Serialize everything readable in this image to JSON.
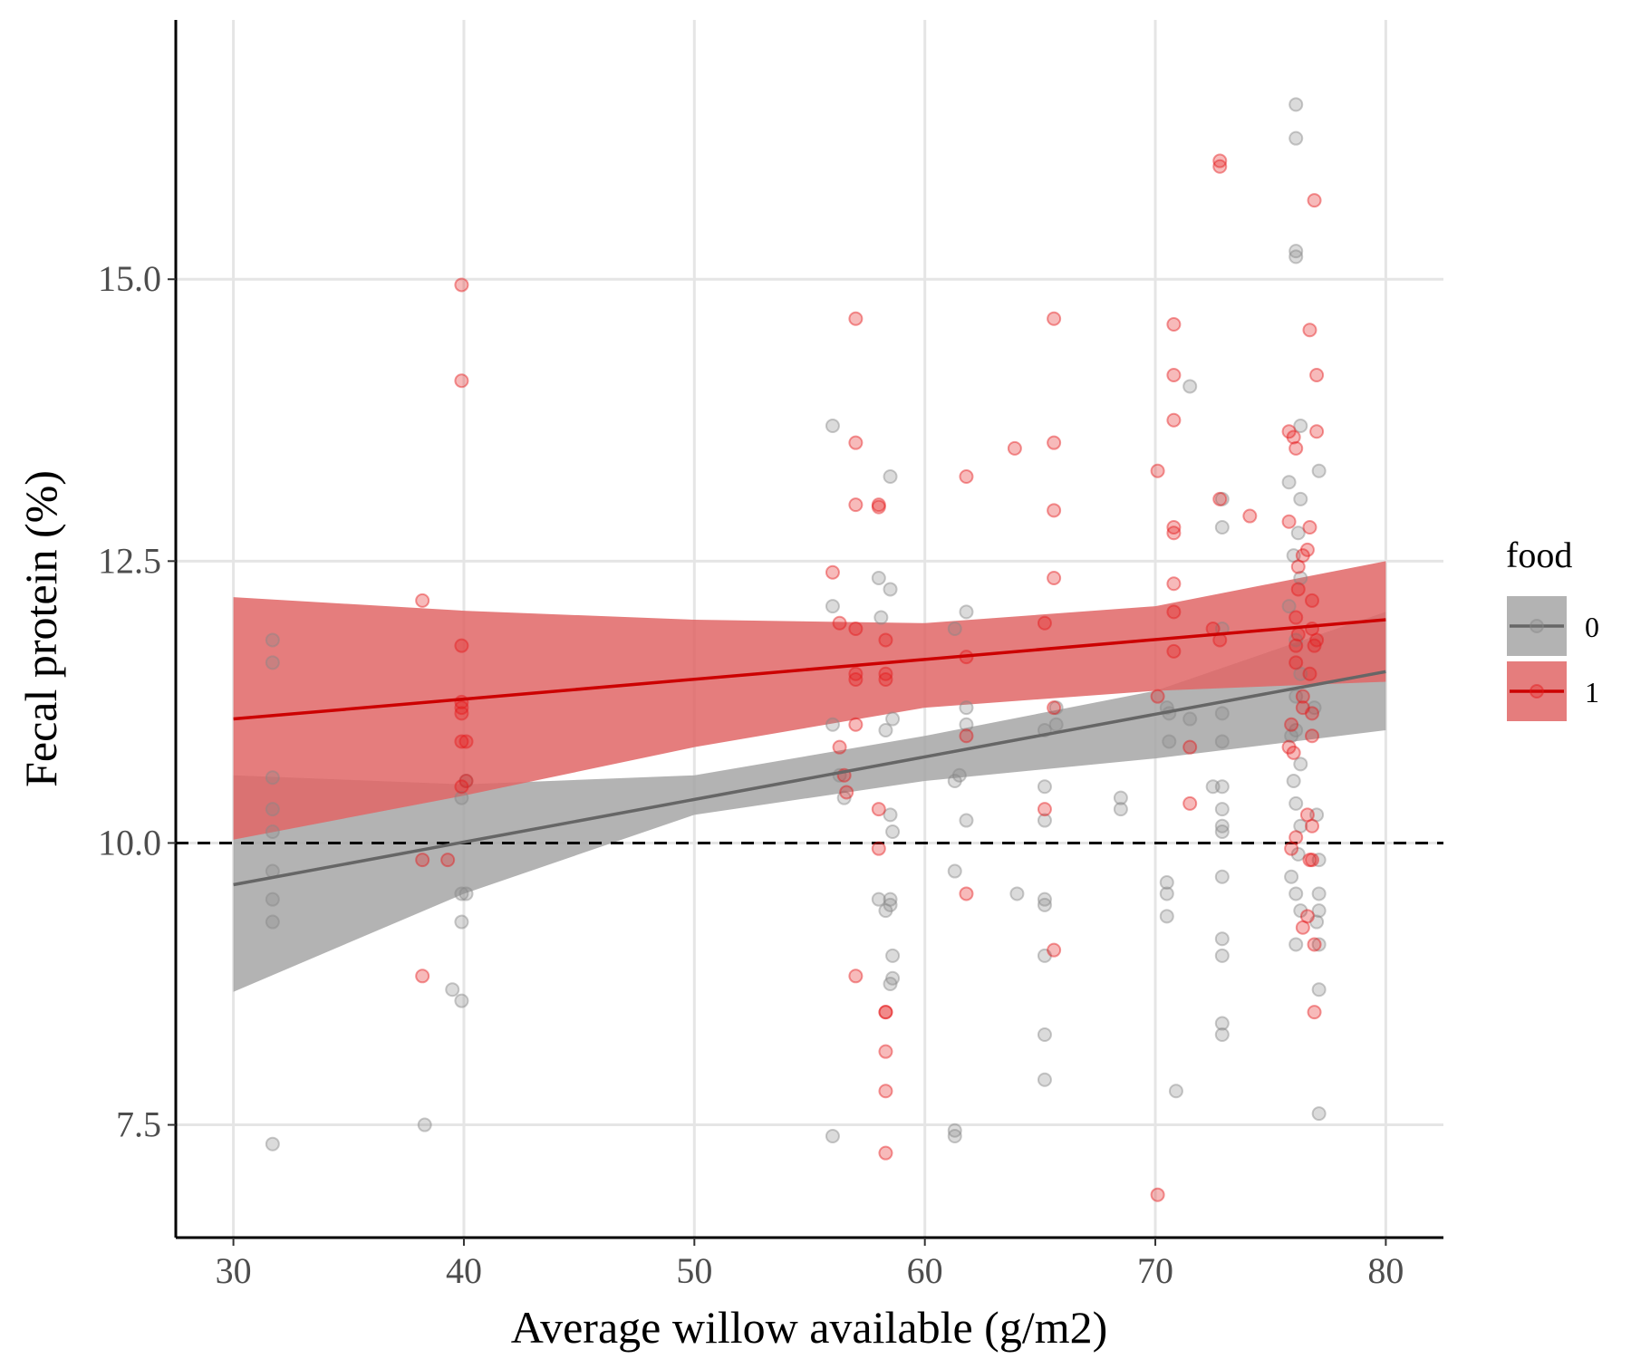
{
  "chart_data": {
    "type": "scatter",
    "xlabel": "Average willow available (g/m2)",
    "ylabel": "Fecal protein (%)",
    "xlim": [
      27.5,
      82.5
    ],
    "ylim": [
      6.5,
      17.3
    ],
    "x_ticks": [
      30,
      40,
      50,
      60,
      70,
      80
    ],
    "y_ticks": [
      7.5,
      10.0,
      12.5,
      15.0
    ],
    "x_tick_labels": [
      "30",
      "40",
      "50",
      "60",
      "70",
      "80"
    ],
    "y_tick_labels": [
      "7.5",
      "10.0",
      "12.5",
      "15.0"
    ],
    "grid": true,
    "reference_line": {
      "y": 10.0,
      "style": "dashed"
    },
    "legend": {
      "title": "food",
      "position": "right"
    },
    "series": [
      {
        "name": "0",
        "color": "#888888",
        "line_color": "#666666",
        "band_color": "#a6a6a6",
        "fit": {
          "x": [
            30,
            80
          ],
          "y": [
            9.63,
            11.52
          ]
        },
        "ci_lower": {
          "x": [
            30,
            40,
            50,
            60,
            70,
            80
          ],
          "y": [
            8.68,
            9.55,
            10.25,
            10.55,
            10.75,
            11.0
          ]
        },
        "ci_upper": {
          "x": [
            30,
            40,
            50,
            60,
            70,
            80
          ],
          "y": [
            10.6,
            10.52,
            10.6,
            10.95,
            11.35,
            12.05
          ]
        },
        "points": [
          [
            31.7,
            7.33
          ],
          [
            31.7,
            9.3
          ],
          [
            31.7,
            9.5
          ],
          [
            31.7,
            9.75
          ],
          [
            31.7,
            10.1
          ],
          [
            31.7,
            10.3
          ],
          [
            31.7,
            10.58
          ],
          [
            31.7,
            11.8
          ],
          [
            31.7,
            11.6
          ],
          [
            38.3,
            7.5
          ],
          [
            39.5,
            8.7
          ],
          [
            39.9,
            8.6
          ],
          [
            39.9,
            9.3
          ],
          [
            39.9,
            9.55
          ],
          [
            40.1,
            9.55
          ],
          [
            39.9,
            10.4
          ],
          [
            40.1,
            10.55
          ],
          [
            56.0,
            13.7
          ],
          [
            56.0,
            12.1
          ],
          [
            56.0,
            11.05
          ],
          [
            56.3,
            10.6
          ],
          [
            56.5,
            10.4
          ],
          [
            56.0,
            7.4
          ],
          [
            58.0,
            12.35
          ],
          [
            58.1,
            12.0
          ],
          [
            58.5,
            12.25
          ],
          [
            58.5,
            13.25
          ],
          [
            58.6,
            11.1
          ],
          [
            58.3,
            11.0
          ],
          [
            58.5,
            10.25
          ],
          [
            58.6,
            10.1
          ],
          [
            58.0,
            9.5
          ],
          [
            58.3,
            9.4
          ],
          [
            58.5,
            9.45
          ],
          [
            58.5,
            9.5
          ],
          [
            58.6,
            9.0
          ],
          [
            58.5,
            8.75
          ],
          [
            58.6,
            8.8
          ],
          [
            61.3,
            11.9
          ],
          [
            61.8,
            12.05
          ],
          [
            61.8,
            11.2
          ],
          [
            61.8,
            11.05
          ],
          [
            61.5,
            10.6
          ],
          [
            61.3,
            10.55
          ],
          [
            61.8,
            10.2
          ],
          [
            61.3,
            9.75
          ],
          [
            61.3,
            7.45
          ],
          [
            61.3,
            7.4
          ],
          [
            64.0,
            9.55
          ],
          [
            65.2,
            11.0
          ],
          [
            65.2,
            10.5
          ],
          [
            65.2,
            10.2
          ],
          [
            65.2,
            9.5
          ],
          [
            65.2,
            9.45
          ],
          [
            65.2,
            9.0
          ],
          [
            65.2,
            8.3
          ],
          [
            65.2,
            7.9
          ],
          [
            65.7,
            11.2
          ],
          [
            65.7,
            11.05
          ],
          [
            68.5,
            10.4
          ],
          [
            68.5,
            10.3
          ],
          [
            70.5,
            11.2
          ],
          [
            70.6,
            11.15
          ],
          [
            70.6,
            10.9
          ],
          [
            70.5,
            9.65
          ],
          [
            70.5,
            9.55
          ],
          [
            70.5,
            9.35
          ],
          [
            70.9,
            7.8
          ],
          [
            71.5,
            14.05
          ],
          [
            71.5,
            11.1
          ],
          [
            72.5,
            10.5
          ],
          [
            72.9,
            11.9
          ],
          [
            72.9,
            11.15
          ],
          [
            72.9,
            10.9
          ],
          [
            72.9,
            10.5
          ],
          [
            72.9,
            10.3
          ],
          [
            72.9,
            10.15
          ],
          [
            72.9,
            10.1
          ],
          [
            72.9,
            9.7
          ],
          [
            72.9,
            9.15
          ],
          [
            72.9,
            9.0
          ],
          [
            72.9,
            8.4
          ],
          [
            72.9,
            8.3
          ],
          [
            72.9,
            12.8
          ],
          [
            72.9,
            13.05
          ],
          [
            76.1,
            16.55
          ],
          [
            76.1,
            16.25
          ],
          [
            76.1,
            15.25
          ],
          [
            76.1,
            15.2
          ],
          [
            76.3,
            13.7
          ],
          [
            75.8,
            13.2
          ],
          [
            76.3,
            13.05
          ],
          [
            77.1,
            13.3
          ],
          [
            76.0,
            12.55
          ],
          [
            76.2,
            12.75
          ],
          [
            76.3,
            12.35
          ],
          [
            75.8,
            12.1
          ],
          [
            76.1,
            11.8
          ],
          [
            76.3,
            11.5
          ],
          [
            76.1,
            11.3
          ],
          [
            76.1,
            11.0
          ],
          [
            75.9,
            10.95
          ],
          [
            76.3,
            10.7
          ],
          [
            76.0,
            10.55
          ],
          [
            76.1,
            10.35
          ],
          [
            76.3,
            10.15
          ],
          [
            76.2,
            9.9
          ],
          [
            75.9,
            9.7
          ],
          [
            76.1,
            9.55
          ],
          [
            76.3,
            9.4
          ],
          [
            76.1,
            9.1
          ],
          [
            76.9,
            11.2
          ],
          [
            77.0,
            10.25
          ],
          [
            77.1,
            9.85
          ],
          [
            77.1,
            9.55
          ],
          [
            77.1,
            9.4
          ],
          [
            77.0,
            9.3
          ],
          [
            77.1,
            9.1
          ],
          [
            77.1,
            8.7
          ],
          [
            77.1,
            7.6
          ]
        ]
      },
      {
        "name": "1",
        "color": "#e41a1c",
        "line_color": "#cc0000",
        "band_color": "#e06666",
        "fit": {
          "x": [
            30,
            80
          ],
          "y": [
            11.1,
            11.98
          ]
        },
        "ci_lower": {
          "x": [
            30,
            40,
            50,
            60,
            70,
            80
          ],
          "y": [
            10.03,
            10.42,
            10.85,
            11.2,
            11.35,
            11.43
          ]
        },
        "ci_upper": {
          "x": [
            30,
            40,
            50,
            60,
            70,
            80
          ],
          "y": [
            12.18,
            12.06,
            11.98,
            11.95,
            12.1,
            12.5
          ]
        },
        "points": [
          [
            38.2,
            12.15
          ],
          [
            38.2,
            9.85
          ],
          [
            38.2,
            8.82
          ],
          [
            39.3,
            9.85
          ],
          [
            39.9,
            14.95
          ],
          [
            39.9,
            14.1
          ],
          [
            39.9,
            11.75
          ],
          [
            39.9,
            11.25
          ],
          [
            39.9,
            11.2
          ],
          [
            39.9,
            11.15
          ],
          [
            39.9,
            10.9
          ],
          [
            40.1,
            10.9
          ],
          [
            39.9,
            10.5
          ],
          [
            40.1,
            10.55
          ],
          [
            56.0,
            12.4
          ],
          [
            56.3,
            11.95
          ],
          [
            56.3,
            10.85
          ],
          [
            56.5,
            10.6
          ],
          [
            56.6,
            10.45
          ],
          [
            57.0,
            14.65
          ],
          [
            57.0,
            13.55
          ],
          [
            57.0,
            13.0
          ],
          [
            57.0,
            11.9
          ],
          [
            57.0,
            11.5
          ],
          [
            57.0,
            11.45
          ],
          [
            57.0,
            11.05
          ],
          [
            57.0,
            8.82
          ],
          [
            58.0,
            13.0
          ],
          [
            58.0,
            12.98
          ],
          [
            58.3,
            11.8
          ],
          [
            58.3,
            11.5
          ],
          [
            58.3,
            11.45
          ],
          [
            58.0,
            10.3
          ],
          [
            58.0,
            9.95
          ],
          [
            58.3,
            8.5
          ],
          [
            58.3,
            8.5
          ],
          [
            58.3,
            8.15
          ],
          [
            58.3,
            7.8
          ],
          [
            58.3,
            7.25
          ],
          [
            61.8,
            13.25
          ],
          [
            61.8,
            11.65
          ],
          [
            61.8,
            10.95
          ],
          [
            61.8,
            9.55
          ],
          [
            63.9,
            13.5
          ],
          [
            65.2,
            11.95
          ],
          [
            65.2,
            10.3
          ],
          [
            65.6,
            14.65
          ],
          [
            65.6,
            13.55
          ],
          [
            65.6,
            12.95
          ],
          [
            65.6,
            12.35
          ],
          [
            65.6,
            11.2
          ],
          [
            65.6,
            9.05
          ],
          [
            70.1,
            13.3
          ],
          [
            70.1,
            11.3
          ],
          [
            70.1,
            6.88
          ],
          [
            70.8,
            14.6
          ],
          [
            70.8,
            14.15
          ],
          [
            70.8,
            13.75
          ],
          [
            70.8,
            12.8
          ],
          [
            70.8,
            12.75
          ],
          [
            70.8,
            12.3
          ],
          [
            70.8,
            12.05
          ],
          [
            70.8,
            11.7
          ],
          [
            71.5,
            10.85
          ],
          [
            71.5,
            10.35
          ],
          [
            72.5,
            11.9
          ],
          [
            72.8,
            16.05
          ],
          [
            72.8,
            16.0
          ],
          [
            72.8,
            13.05
          ],
          [
            72.8,
            11.8
          ],
          [
            74.1,
            12.9
          ],
          [
            75.8,
            13.65
          ],
          [
            76.0,
            13.6
          ],
          [
            76.1,
            13.5
          ],
          [
            75.8,
            12.85
          ],
          [
            76.2,
            12.45
          ],
          [
            76.4,
            12.55
          ],
          [
            76.6,
            12.6
          ],
          [
            76.2,
            12.25
          ],
          [
            76.1,
            12.0
          ],
          [
            76.2,
            11.85
          ],
          [
            76.1,
            11.75
          ],
          [
            76.1,
            11.6
          ],
          [
            76.4,
            11.3
          ],
          [
            76.4,
            11.2
          ],
          [
            75.9,
            11.05
          ],
          [
            75.8,
            10.85
          ],
          [
            76.0,
            10.8
          ],
          [
            76.1,
            10.05
          ],
          [
            75.9,
            9.95
          ],
          [
            76.4,
            9.25
          ],
          [
            76.7,
            14.55
          ],
          [
            76.9,
            15.7
          ],
          [
            77.0,
            14.15
          ],
          [
            77.0,
            13.65
          ],
          [
            76.7,
            12.8
          ],
          [
            76.8,
            12.15
          ],
          [
            76.7,
            11.5
          ],
          [
            76.8,
            11.9
          ],
          [
            77.0,
            11.8
          ],
          [
            76.9,
            11.75
          ],
          [
            76.8,
            11.15
          ],
          [
            76.8,
            10.95
          ],
          [
            76.6,
            10.25
          ],
          [
            76.8,
            10.15
          ],
          [
            76.7,
            9.85
          ],
          [
            76.8,
            9.85
          ],
          [
            76.6,
            9.35
          ],
          [
            76.9,
            9.1
          ],
          [
            76.9,
            8.5
          ]
        ]
      }
    ]
  }
}
